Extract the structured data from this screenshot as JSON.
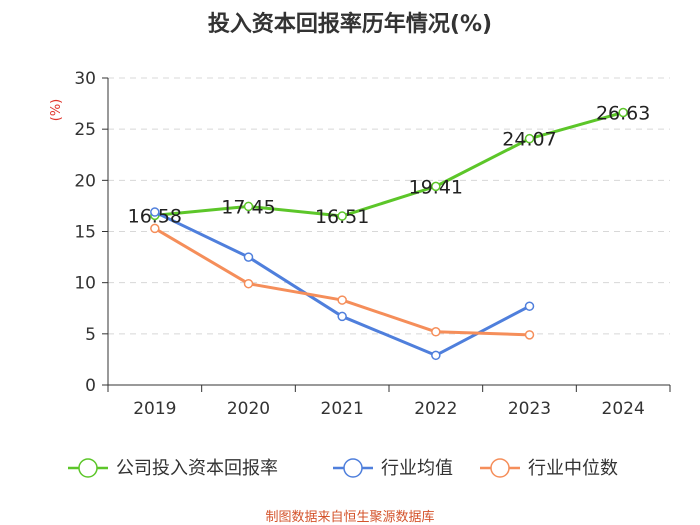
{
  "chart_data": {
    "type": "line",
    "title": "投入资本回报率历年情况(%)",
    "ylabel": "(%)",
    "xlabel": "",
    "categories": [
      "2019",
      "2020",
      "2021",
      "2022",
      "2023",
      "2024"
    ],
    "ylim": [
      0,
      30
    ],
    "yticks": [
      0,
      5,
      10,
      15,
      20,
      25,
      30
    ],
    "grid": true,
    "legend_position": "bottom",
    "series": [
      {
        "name": "公司投入资本回报率",
        "color": "#5cc629",
        "values": [
          16.58,
          17.45,
          16.51,
          19.41,
          24.07,
          26.63
        ],
        "labels": [
          "16.58",
          "17.45",
          "16.51",
          "19.41",
          "24.07",
          "26.63"
        ]
      },
      {
        "name": "行业均值",
        "color": "#4f7fdc",
        "values": [
          16.9,
          12.5,
          6.7,
          2.9,
          7.7,
          null
        ]
      },
      {
        "name": "行业中位数",
        "color": "#f58e5a",
        "values": [
          15.3,
          9.9,
          8.3,
          5.2,
          4.9,
          null
        ]
      }
    ]
  },
  "footer": {
    "source": "制图数据来自恒生聚源数据库"
  }
}
